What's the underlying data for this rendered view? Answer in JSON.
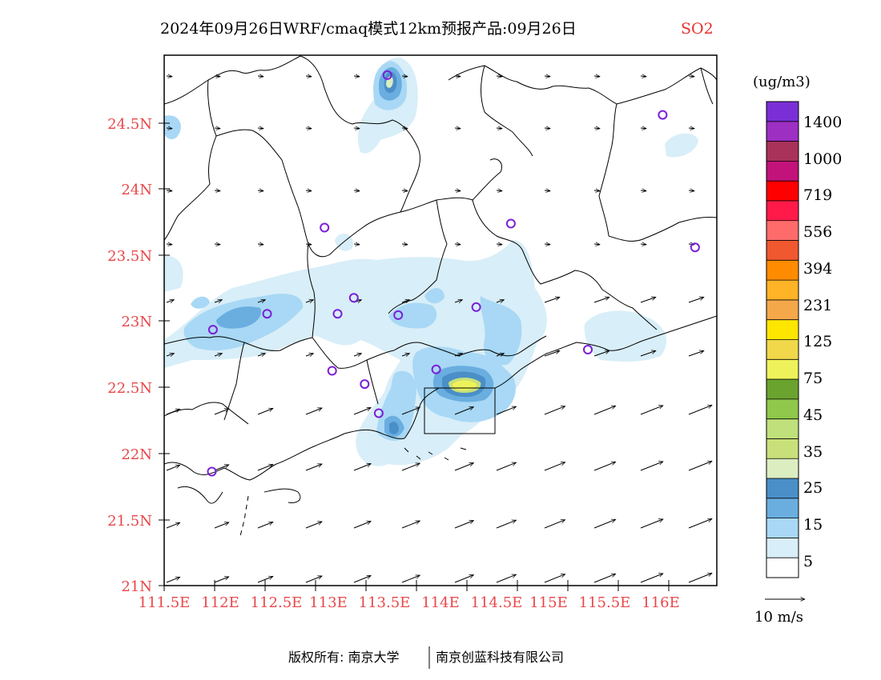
{
  "title": {
    "main": "2024年09月26日WRF/cmaq模式12km预报产品:09月26日",
    "pollutant": "SO2"
  },
  "colors": {
    "tick_label": "#e8474a",
    "pollutant_title": "#e8312d",
    "station_marker": "#7b1fd6"
  },
  "axes": {
    "y_ticks": [
      "24.5N",
      "24N",
      "23.5N",
      "23N",
      "22.5N",
      "22N",
      "21.5N",
      "21N"
    ],
    "x_ticks": [
      "111.5E",
      "112E",
      "112.5E",
      "113E",
      "113.5E",
      "114E",
      "114.5E",
      "115E",
      "115.5E",
      "116E"
    ],
    "lon_range": [
      111.5,
      116.6
    ],
    "lat_range": [
      21.0,
      25.0
    ]
  },
  "colorbar": {
    "unit": "(ug/m3)",
    "labels": [
      "1400",
      "1000",
      "719",
      "556",
      "394",
      "231",
      "125",
      "75",
      "45",
      "35",
      "25",
      "15",
      "5"
    ],
    "colors_top_to_bottom": [
      "#7a2fd6",
      "#9d2fc2",
      "#a8325a",
      "#c2137a",
      "#ff0000",
      "#ff1a4a",
      "#ff6b6b",
      "#f0582f",
      "#ff8c00",
      "#ffb326",
      "#f5a84a",
      "#ffe600",
      "#f0d84a",
      "#eef25a",
      "#6ba32f",
      "#8fc84a",
      "#bfe07a",
      "#c8e07a",
      "#dcedc0",
      "#4a8fc8",
      "#6aaee0",
      "#a8d8f5",
      "#d8eef8",
      "#ffffff"
    ]
  },
  "wind_legend": {
    "label": "10 m/s"
  },
  "footer": {
    "copyright": "版权所有: 南京大学",
    "company": "南京创蓝科技有限公司"
  },
  "stations": [
    [
      113.56,
      24.85
    ],
    [
      116.1,
      24.55
    ],
    [
      112.98,
      23.7
    ],
    [
      114.7,
      23.73
    ],
    [
      116.4,
      23.55
    ],
    [
      112.45,
      23.05
    ],
    [
      111.95,
      22.93
    ],
    [
      113.25,
      23.17
    ],
    [
      113.1,
      23.05
    ],
    [
      113.66,
      23.04
    ],
    [
      114.38,
      23.1
    ],
    [
      115.41,
      22.78
    ],
    [
      113.05,
      22.62
    ],
    [
      113.35,
      22.52
    ],
    [
      113.48,
      22.3
    ],
    [
      114.01,
      22.63
    ],
    [
      111.94,
      21.86
    ]
  ]
}
